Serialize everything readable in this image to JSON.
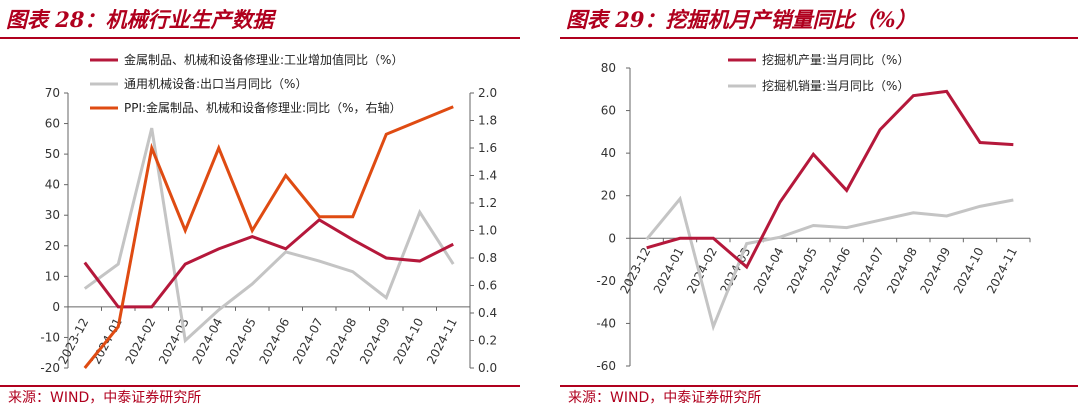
{
  "chart_data": [
    {
      "type": "line",
      "title": "图表 28：机械行业生产数据",
      "source": "来源：WIND，中泰证券研究所",
      "categories": [
        "2023-12",
        "2024-01",
        "2024-02",
        "2024-03",
        "2024-04",
        "2024-05",
        "2024-06",
        "2024-07",
        "2024-08",
        "2024-09",
        "2024-10",
        "2024-11"
      ],
      "ylim_left": [
        -20,
        70
      ],
      "yticks_left": [
        -20,
        -10,
        0,
        10,
        20,
        30,
        40,
        50,
        60,
        70
      ],
      "ylim_right": [
        0.0,
        2.0
      ],
      "yticks_right": [
        "0.0",
        "0.2",
        "0.4",
        "0.6",
        "0.8",
        "1.0",
        "1.2",
        "1.4",
        "1.6",
        "1.8",
        "2.0"
      ],
      "grid": false,
      "legend_position": "top-center",
      "series": [
        {
          "name": "金属制品、机械和设备修理业:工业增加值同比（%）",
          "axis": "left",
          "color": "#b5183b",
          "values": [
            14.5,
            0,
            0,
            14,
            19,
            23,
            19,
            28.5,
            22,
            16,
            15,
            20.5
          ]
        },
        {
          "name": "通用机械设备:出口当月同比（%）",
          "axis": "left",
          "color": "#c4c4c4",
          "values": [
            6,
            14,
            58.5,
            -11,
            -1,
            7.5,
            18,
            15,
            11.5,
            3,
            31,
            14
          ]
        },
        {
          "name": "PPI:金属制品、机械和设备修理业:同比（%，右轴）",
          "axis": "right",
          "color": "#df4b12",
          "values": [
            0.0,
            0.3,
            1.6,
            1.0,
            1.6,
            1.0,
            1.4,
            1.1,
            1.1,
            1.7,
            1.8,
            1.9
          ]
        }
      ]
    },
    {
      "type": "line",
      "title": "图表 29：挖掘机月产销量同比（%）",
      "source": "来源：WIND，中泰证券研究所",
      "categories": [
        "2023-12",
        "2024-01",
        "2024-02",
        "2024-03",
        "2024-04",
        "2024-05",
        "2024-06",
        "2024-07",
        "2024-08",
        "2024-09",
        "2024-10",
        "2024-11"
      ],
      "ylim": [
        -60,
        80
      ],
      "yticks": [
        -60,
        -40,
        -20,
        0,
        20,
        40,
        60,
        80
      ],
      "grid": false,
      "legend_position": "top-center",
      "series": [
        {
          "name": "挖掘机产量:当月同比（%）",
          "color": "#b5183b",
          "values": [
            -4.5,
            0,
            0,
            -13.5,
            17,
            39.5,
            22.5,
            51,
            67,
            69,
            45,
            44
          ]
        },
        {
          "name": "挖掘机销量:当月同比（%）",
          "color": "#c4c4c4",
          "values": [
            -0.5,
            18.5,
            -41.5,
            -2.5,
            0.5,
            6,
            5,
            8.5,
            12,
            10.5,
            15,
            18
          ]
        }
      ]
    }
  ]
}
